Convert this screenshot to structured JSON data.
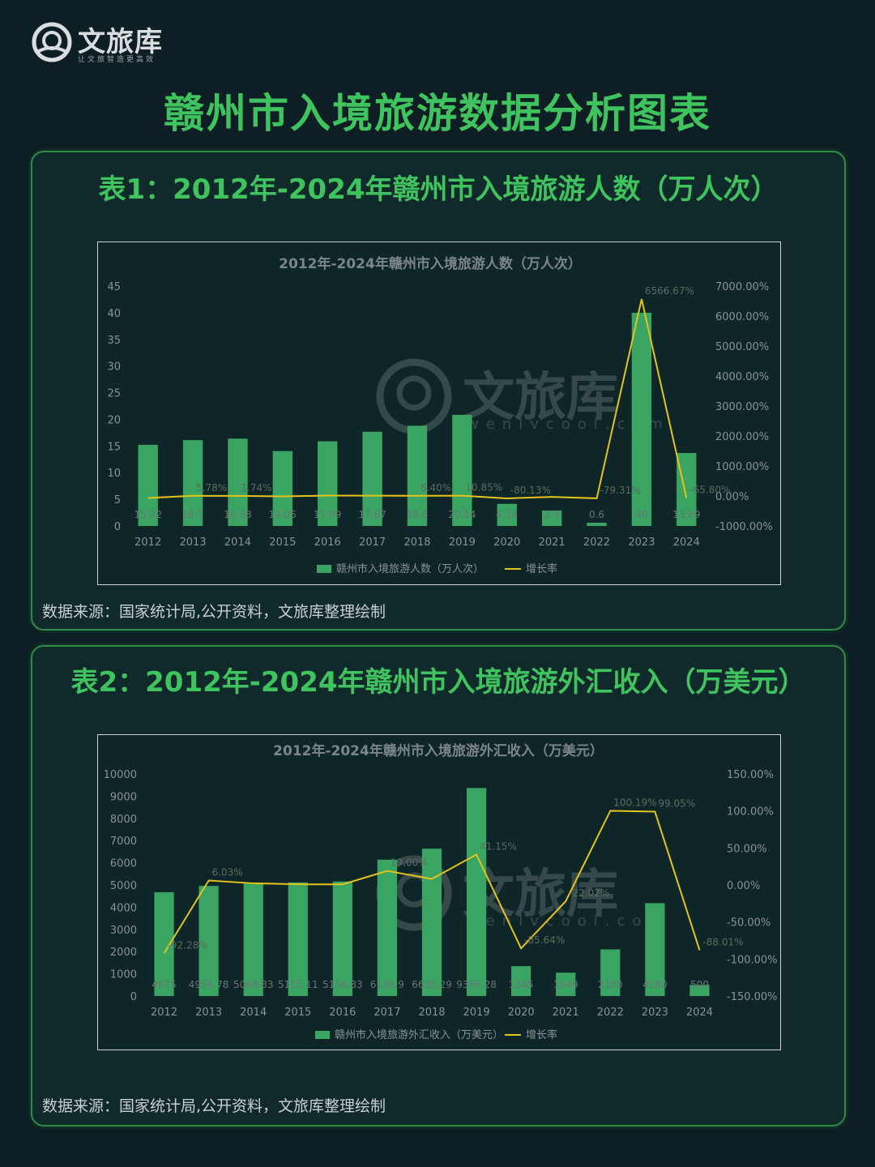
{
  "header": {
    "brand": "文旅库",
    "slogan": "让文旅智造更高效",
    "title": "赣州市入境旅游数据分析图表"
  },
  "panel1": {
    "title": "表1：2012年-2024年赣州市入境旅游人数（万人次）",
    "source": "数据来源：国家统计局,公开资料，文旅库整理绘制"
  },
  "panel2": {
    "title": "表2：2012年-2024年赣州市入境旅游外汇收入（万美元）",
    "source": "数据来源：国家统计局,公开资料，文旅库整理绘制"
  },
  "watermark": {
    "brand": "文旅库",
    "domain": "wenlvcool.com"
  },
  "colors": {
    "bar": "#3aa563",
    "line": "#e3c31c",
    "title": "#3fc35f",
    "axis_text": "#8a9296"
  },
  "chart_data": [
    {
      "type": "bar",
      "title": "2012年-2024年赣州市入境旅游人数（万人次）",
      "categories": [
        "2012",
        "2013",
        "2014",
        "2015",
        "2016",
        "2017",
        "2018",
        "2019",
        "2020",
        "2021",
        "2022",
        "2023",
        "2024"
      ],
      "series": [
        {
          "name": "赣州市入境旅游人数（万人次）",
          "type": "bar",
          "axis": "left",
          "values": [
            15.22,
            16.1,
            16.38,
            14.05,
            15.89,
            17.67,
            18.8,
            20.84,
            4.14,
            2.9,
            0.6,
            40,
            13.69
          ],
          "labels": [
            "15.22",
            "16.1",
            "16.38",
            "14.05",
            "15.89",
            "17.67",
            "18.8",
            "20.84",
            "4.14",
            "2.9",
            "0.6",
            "40",
            "13.69"
          ]
        },
        {
          "name": "增长率",
          "type": "line",
          "axis": "right",
          "values": [
            -66.67,
            5.78,
            1.74,
            -14.23,
            13.1,
            11.2,
            6.4,
            10.85,
            -80.13,
            -29.95,
            -79.31,
            6566.67,
            -65.8
          ],
          "labels": [
            "",
            "5.78%",
            "1.74%",
            "",
            "",
            "",
            "6.40%",
            "10.85%",
            "-80.13%",
            "",
            "-79.31%",
            "6566.67%",
            "-65.80%"
          ]
        }
      ],
      "y_left": {
        "min": 0,
        "max": 45,
        "ticks": [
          "0",
          "5",
          "10",
          "15",
          "20",
          "25",
          "30",
          "35",
          "40",
          "45"
        ]
      },
      "y_right": {
        "min": -1000,
        "max": 7000,
        "ticks": [
          "-1000.00%",
          "0.00%",
          "1000.00%",
          "2000.00%",
          "3000.00%",
          "4000.00%",
          "5000.00%",
          "6000.00%",
          "7000.00%"
        ]
      },
      "legend": [
        "赣州市入境旅游人数（万人次）",
        "增长率"
      ],
      "legend_position": "bottom"
    },
    {
      "type": "bar",
      "title": "2012年-2024年赣州市入境旅游外汇收入（万美元）",
      "categories": [
        "2012",
        "2013",
        "2014",
        "2015",
        "2016",
        "2017",
        "2018",
        "2019",
        "2020",
        "2021",
        "2022",
        "2023",
        "2024"
      ],
      "series": [
        {
          "name": "赣州市入境旅游外汇收入（万美元）",
          "type": "bar",
          "axis": "left",
          "values": [
            4675,
            4956.78,
            5068.83,
            5115.11,
            5156.83,
            6136.9,
            6635.29,
            9365.28,
            1345,
            1049,
            2100,
            4180,
            500
          ],
          "labels": [
            "4675",
            "4956.78",
            "5068.83",
            "5115.11",
            "5156.83",
            "6136.9",
            "6635.29",
            "9365.28",
            "1345",
            "1049",
            "2100",
            "4180",
            "500"
          ]
        },
        {
          "name": "增长率",
          "type": "line",
          "axis": "right",
          "values": [
            -92.28,
            6.03,
            2.26,
            0.91,
            0.82,
            19.0,
            8.12,
            41.15,
            -85.64,
            -22.02,
            100.19,
            99.05,
            -88.01
          ],
          "labels": [
            "-92.28%",
            "6.03%",
            "",
            "",
            "",
            "19.00%",
            "",
            "41.15%",
            "-85.64%",
            "-22.02%",
            "100.19%",
            "99.05%",
            "-88.01%"
          ]
        }
      ],
      "y_left": {
        "min": 0,
        "max": 10000,
        "ticks": [
          "0",
          "1000",
          "2000",
          "3000",
          "4000",
          "5000",
          "6000",
          "7000",
          "8000",
          "9000",
          "10000"
        ]
      },
      "y_right": {
        "min": -150,
        "max": 150,
        "ticks": [
          "-150.00%",
          "-100.00%",
          "-50.00%",
          "0.00%",
          "50.00%",
          "100.00%",
          "150.00%"
        ]
      },
      "legend": [
        "赣州市入境旅游外汇收入（万美元）",
        "增长率"
      ],
      "legend_position": "bottom"
    }
  ]
}
